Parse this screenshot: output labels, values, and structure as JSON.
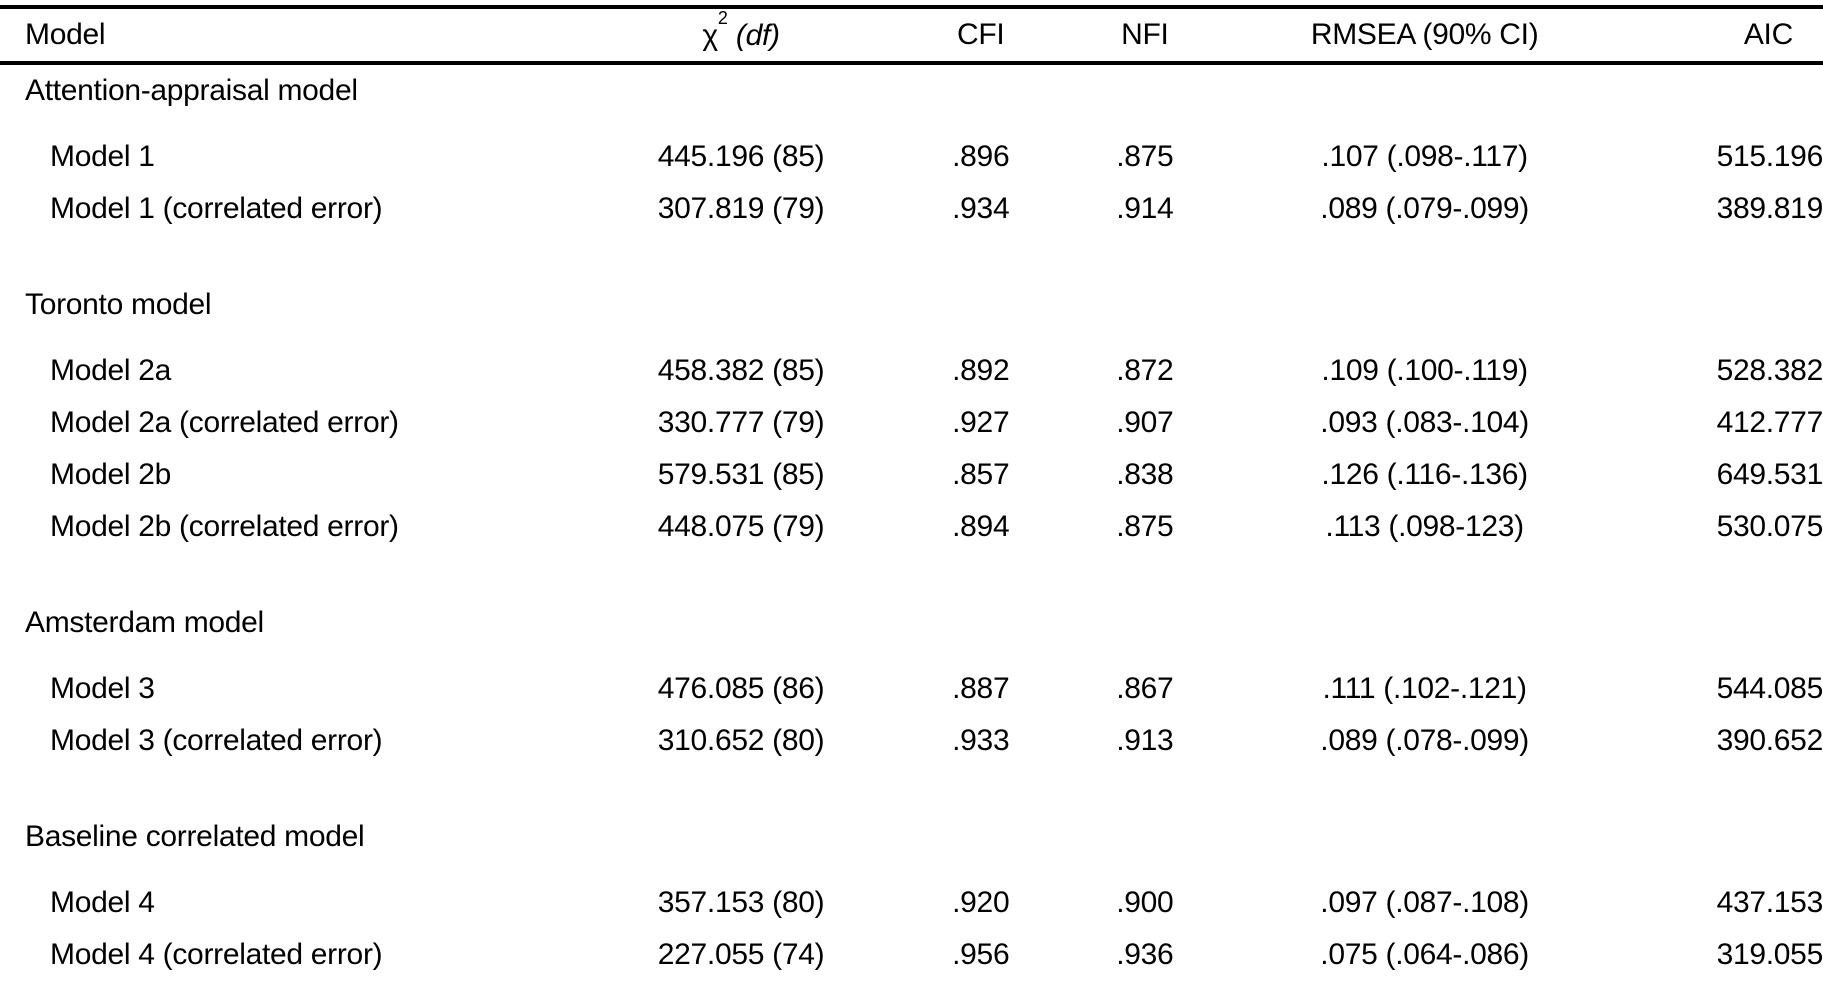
{
  "table": {
    "header": {
      "model": "Model",
      "chi2_symbol": "χ",
      "chi2_sup": "2",
      "chi2_df": "(df)",
      "cfi": "CFI",
      "nfi": "NFI",
      "rmsea": "RMSEA (90% CI)",
      "aic": "AIC"
    },
    "sections": [
      {
        "title": "Attention-appraisal model",
        "rows": [
          {
            "model": "Model 1",
            "chi2_df": "445.196 (85)",
            "cfi": ".896",
            "nfi": ".875",
            "rmsea": ".107 (.098-.117)",
            "aic": "515.196"
          },
          {
            "model": "Model 1 (correlated error)",
            "chi2_df": "307.819 (79)",
            "cfi": ".934",
            "nfi": ".914",
            "rmsea": ".089 (.079-.099)",
            "aic": "389.819"
          }
        ]
      },
      {
        "title": "Toronto model",
        "rows": [
          {
            "model": "Model 2a",
            "chi2_df": "458.382 (85)",
            "cfi": ".892",
            "nfi": ".872",
            "rmsea": ".109 (.100-.119)",
            "aic": "528.382"
          },
          {
            "model": "Model 2a (correlated error)",
            "chi2_df": "330.777 (79)",
            "cfi": ".927",
            "nfi": ".907",
            "rmsea": ".093 (.083-.104)",
            "aic": "412.777"
          },
          {
            "model": "Model 2b",
            "chi2_df": "579.531 (85)",
            "cfi": ".857",
            "nfi": ".838",
            "rmsea": ".126 (.116-.136)",
            "aic": "649.531"
          },
          {
            "model": "Model 2b (correlated error)",
            "chi2_df": "448.075 (79)",
            "cfi": ".894",
            "nfi": ".875",
            "rmsea": ".113 (.098-123)",
            "aic": "530.075"
          }
        ]
      },
      {
        "title": "Amsterdam model",
        "rows": [
          {
            "model": "Model 3",
            "chi2_df": "476.085 (86)",
            "cfi": ".887",
            "nfi": ".867",
            "rmsea": ".111 (.102-.121)",
            "aic": "544.085"
          },
          {
            "model": "Model 3 (correlated error)",
            "chi2_df": "310.652 (80)",
            "cfi": ".933",
            "nfi": ".913",
            "rmsea": ".089 (.078-.099)",
            "aic": "390.652"
          }
        ]
      },
      {
        "title": "Baseline correlated model",
        "rows": [
          {
            "model": "Model 4",
            "chi2_df": "357.153 (80)",
            "cfi": ".920",
            "nfi": ".900",
            "rmsea": ".097 (.087-.108)",
            "aic": "437.153"
          },
          {
            "model": "Model 4 (correlated error)",
            "chi2_df": "227.055 (74)",
            "cfi": ".956",
            "nfi": ".936",
            "rmsea": ".075 (.064-.086)",
            "aic": "319.055"
          }
        ]
      }
    ]
  }
}
